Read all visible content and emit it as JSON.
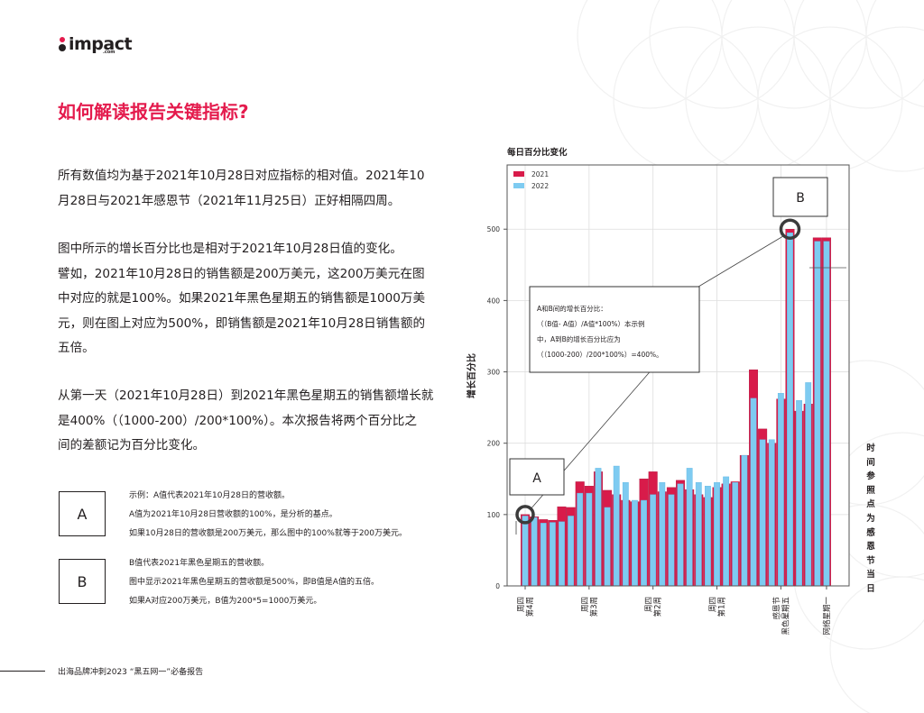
{
  "logo": {
    "text": "impact",
    "sub": ".com"
  },
  "page_title": "如何解读报告关键指标?",
  "paragraphs": [
    [
      "所有数值均为基于2021年10月28日对应指标的相对值。2021年10",
      "月28日与2021年感恩节（2021年11月25日）正好相隔四周。"
    ],
    [
      "图中所示的增长百分比也是相对于2021年10月28日值的变化。",
      "譬如，2021年10月28日的销售额是200万美元，这200万美元在图",
      "中对应的就是100%。如果2021年黑色星期五的销售额是1000万美",
      "元，则在图上对应为500%，即销售额是2021年10月28日销售额的",
      "五倍。"
    ],
    [
      "从第一天（2021年10月28日）到2021年黑色星期五的销售额增长就",
      "是400%（（1000-200）/200*100%）。本次报告将两个百分比之",
      "间的差额记为百分比变化。"
    ]
  ],
  "legend_boxes": [
    {
      "label": "A",
      "lines": [
        "示例：A值代表2021年10月28日的营收额。",
        "A值为2021年10月28日营收额的100%，是分析的基点。",
        "如果10月28日的营收额是200万美元，那么图中的100%就等于200万美元。"
      ]
    },
    {
      "label": "B",
      "lines": [
        "B值代表2021年黑色星期五的营收额。",
        "图中显示2021年黑色星期五的营收额是500%，即B值是A值的五倍。",
        "如果A对应200万美元，B值为200*5=1000万美元。"
      ]
    }
  ],
  "footer": "出海品牌冲刺2023 “黑五网一”必备报告",
  "side_label": "时间参照点为感恩节当日",
  "colors": {
    "accent": "#e41b4d",
    "series_2021": "#d81b4a",
    "series_2022": "#7ecbf1"
  },
  "chart_data": {
    "type": "bar",
    "title": "每日百分比变化",
    "ylabel": "增长百分比",
    "ylim": [
      0,
      590
    ],
    "yticks": [
      0,
      100,
      200,
      300,
      400,
      500
    ],
    "grid": true,
    "legend_position": "top-left",
    "x": [
      0,
      1,
      2,
      3,
      4,
      5,
      6,
      7,
      8,
      9,
      10,
      11,
      12,
      13,
      14,
      15,
      16,
      17,
      18,
      19,
      20,
      21,
      22,
      23,
      24,
      25,
      26,
      27,
      28,
      29,
      30,
      31,
      32,
      33
    ],
    "xtick_labels": [
      {
        "x": 0,
        "lines": [
          "周四",
          "第4周"
        ]
      },
      {
        "x": 7,
        "lines": [
          "周四",
          "第3周"
        ]
      },
      {
        "x": 14,
        "lines": [
          "周四",
          "第2周"
        ]
      },
      {
        "x": 21,
        "lines": [
          "周四",
          "第1周"
        ]
      },
      {
        "x": 28,
        "lines": [
          "感恩节",
          "黑色星期五"
        ]
      },
      {
        "x": 33,
        "lines": [
          "网络星期一"
        ]
      }
    ],
    "series": [
      {
        "name": "2021",
        "values": [
          100,
          97,
          93,
          92,
          111,
          110,
          146,
          140,
          160,
          134,
          128,
          120,
          118,
          150,
          160,
          132,
          138,
          148,
          135,
          128,
          124,
          138,
          143,
          146,
          183,
          303,
          220,
          200,
          262,
          500,
          245,
          255,
          488,
          488
        ]
      },
      {
        "name": "2022",
        "values": [
          98,
          96,
          88,
          89,
          90,
          98,
          130,
          130,
          165,
          110,
          168,
          145,
          120,
          120,
          128,
          145,
          128,
          143,
          165,
          145,
          140,
          145,
          153,
          145,
          183,
          263,
          205,
          205,
          270,
          495,
          260,
          285,
          483,
          483
        ]
      }
    ],
    "annotations": {
      "A": {
        "label": "A",
        "x": 0,
        "y": 100
      },
      "B": {
        "label": "B",
        "x": 29,
        "y": 500
      },
      "callout_lines": [
        "A和B间的增长百分比：",
        "（（B值- A值）/A值*100%）本示例",
        "中，A到B的增长百分比应为",
        "（（1000-200）/200*100%）=400%。"
      ]
    }
  }
}
